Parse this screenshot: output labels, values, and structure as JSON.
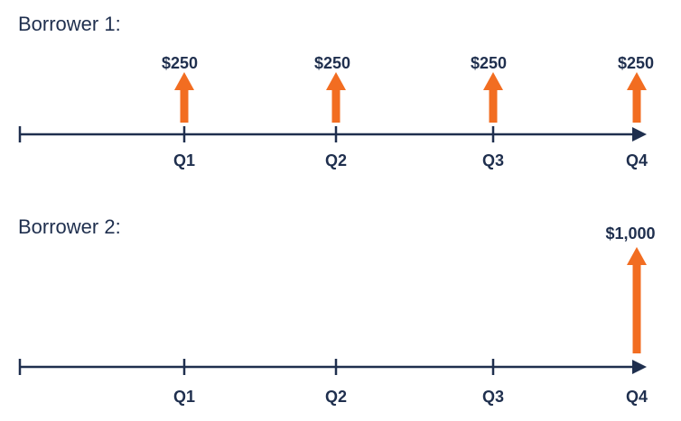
{
  "colors": {
    "axis": "#1f2f4e",
    "arrow": "#f26d21",
    "text": "#1f2f4e"
  },
  "timelines": [
    {
      "label": "Borrower 1:",
      "ticks": [
        "Q1",
        "Q2",
        "Q3",
        "Q4"
      ],
      "payments": [
        {
          "quarter": "Q1",
          "amount": 250,
          "label": "$250"
        },
        {
          "quarter": "Q2",
          "amount": 250,
          "label": "$250"
        },
        {
          "quarter": "Q3",
          "amount": 250,
          "label": "$250"
        },
        {
          "quarter": "Q4",
          "amount": 250,
          "label": "$250"
        }
      ]
    },
    {
      "label": "Borrower 2:",
      "ticks": [
        "Q1",
        "Q2",
        "Q3",
        "Q4"
      ],
      "payments": [
        {
          "quarter": "Q4",
          "amount": 1000,
          "label": "$1,000"
        }
      ]
    }
  ]
}
